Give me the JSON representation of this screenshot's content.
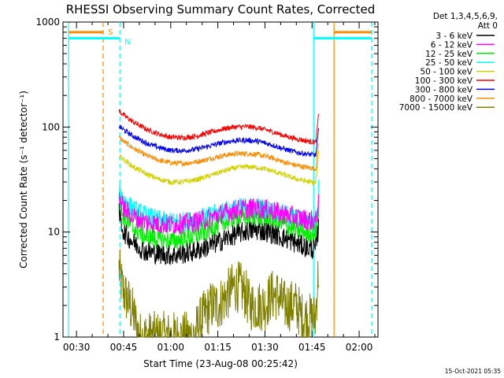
{
  "chart_data": {
    "type": "line",
    "title": "RHESSI Observing Summary Count Rates, Corrected",
    "xlabel": "Start Time (23-Aug-08 00:25:42)",
    "ylabel": "Corrected Count Rate (s⁻¹ detector⁻¹)",
    "y_scale": "log",
    "ylim": [
      1,
      1000
    ],
    "xlim_minutes": [
      25.7,
      126
    ],
    "x_ticks": [
      {
        "minutes": 30,
        "label": "00:30"
      },
      {
        "minutes": 45,
        "label": "00:45"
      },
      {
        "minutes": 60,
        "label": "01:00"
      },
      {
        "minutes": 75,
        "label": "01:15"
      },
      {
        "minutes": 90,
        "label": "01:30"
      },
      {
        "minutes": 105,
        "label": "01:45"
      },
      {
        "minutes": 120,
        "label": "02:00"
      }
    ],
    "y_ticks": [
      {
        "value": 1,
        "label": "1"
      },
      {
        "value": 10,
        "label": "10"
      },
      {
        "value": 100,
        "label": "100"
      },
      {
        "value": 1000,
        "label": "1000"
      }
    ],
    "legend_header": [
      "Det 1,3,4,5,6,9,",
      "Att 0"
    ],
    "legend_position": "right",
    "series": [
      {
        "name": "3 - 6 keV",
        "color": "#000000",
        "x": [
          43.5,
          45,
          48,
          52,
          56,
          60,
          64,
          68,
          72,
          76,
          80,
          84,
          88,
          92,
          96,
          100,
          104,
          106.2,
          107.2
        ],
        "y": [
          15,
          10,
          8,
          6.5,
          6.2,
          6.0,
          6.2,
          6.6,
          7.3,
          8.2,
          9.3,
          10.2,
          10.4,
          9.8,
          8.8,
          7.8,
          7.0,
          6.8,
          12
        ]
      },
      {
        "name": "6 - 12 keV",
        "color": "#ff00ff",
        "x": [
          43.5,
          45,
          48,
          52,
          56,
          60,
          64,
          68,
          72,
          76,
          80,
          84,
          88,
          92,
          96,
          100,
          104,
          106.2,
          107.2
        ],
        "y": [
          22,
          17,
          14,
          12.5,
          12,
          11.8,
          12,
          12.5,
          13.5,
          14.8,
          16,
          16.8,
          16.8,
          16,
          14.8,
          13.8,
          13,
          12.8,
          20
        ]
      },
      {
        "name": "12 - 25 keV",
        "color": "#00ee00",
        "x": [
          43.5,
          45,
          48,
          52,
          56,
          60,
          64,
          68,
          72,
          76,
          80,
          84,
          88,
          92,
          96,
          100,
          104,
          106.2,
          107.2
        ],
        "y": [
          18,
          14,
          11,
          9.2,
          8.5,
          8.2,
          8.5,
          9.3,
          10.5,
          12,
          13.3,
          14,
          13.8,
          12.8,
          11.6,
          10.5,
          9.8,
          9.5,
          16
        ]
      },
      {
        "name": "25 - 50 keV",
        "color": "#00ffff",
        "x": [
          43.5,
          45,
          48,
          52,
          56,
          60,
          64,
          68,
          72,
          76,
          80,
          84,
          88,
          92,
          96,
          100,
          104,
          106.2,
          107.2
        ],
        "y": [
          25,
          20,
          16.5,
          14.2,
          13,
          12.4,
          12.4,
          13,
          14,
          15.4,
          16.6,
          17.2,
          17,
          16,
          14.6,
          13.4,
          12.6,
          12.2,
          28
        ]
      },
      {
        "name": "50 - 100 keV",
        "color": "#d2d200",
        "x": [
          43.5,
          45,
          48,
          52,
          56,
          60,
          64,
          68,
          72,
          76,
          80,
          84,
          88,
          92,
          96,
          100,
          104,
          106.2,
          107.2
        ],
        "y": [
          54,
          49,
          42,
          36,
          32,
          30,
          30,
          31.5,
          34,
          37.5,
          40.5,
          42,
          41,
          38.5,
          35,
          32,
          30,
          29.5,
          60
        ]
      },
      {
        "name": "100 - 300 keV",
        "color": "#ff0000",
        "x": [
          43.5,
          45,
          48,
          52,
          56,
          60,
          64,
          68,
          72,
          76,
          80,
          84,
          88,
          92,
          96,
          100,
          104,
          106.2,
          107.2
        ],
        "y": [
          142,
          130,
          112,
          96,
          86,
          80,
          79,
          82,
          88,
          95,
          100,
          101,
          98,
          91,
          83,
          77,
          73,
          72,
          140
        ]
      },
      {
        "name": "300 - 800 keV",
        "color": "#0000ff",
        "x": [
          43.5,
          45,
          48,
          52,
          56,
          60,
          64,
          68,
          72,
          76,
          80,
          84,
          88,
          92,
          96,
          100,
          104,
          106.2,
          107.2
        ],
        "y": [
          102,
          94,
          82,
          71,
          64,
          60,
          59.5,
          61.5,
          65.5,
          70.5,
          74,
          75,
          73,
          68,
          62,
          57.5,
          55,
          54,
          100
        ]
      },
      {
        "name": "800 - 7000 keV",
        "color": "#ff8c00",
        "x": [
          43.5,
          45,
          48,
          52,
          56,
          60,
          64,
          68,
          72,
          76,
          80,
          84,
          88,
          92,
          96,
          100,
          104,
          106.2,
          107.2
        ],
        "y": [
          80,
          73,
          63,
          54,
          48.5,
          45.5,
          45,
          46.5,
          49.5,
          53,
          55.5,
          56,
          54.5,
          51,
          46.5,
          43,
          41,
          40,
          78
        ]
      },
      {
        "name": "7000 - 15000 keV",
        "color": "#808000",
        "x": [
          43.5,
          44.5,
          45.5,
          47,
          48.5,
          50,
          53,
          57,
          62,
          67,
          70,
          73,
          75,
          78,
          80,
          82,
          84,
          85,
          86,
          88,
          90,
          92,
          94,
          96,
          98,
          100,
          102,
          104,
          106,
          107.2
        ],
        "y": [
          4.5,
          3,
          2.5,
          2,
          1.5,
          1,
          1,
          1,
          1,
          1,
          1.5,
          2,
          2,
          2.5,
          3,
          3,
          2.5,
          2,
          2,
          2,
          2,
          2.5,
          2.5,
          2,
          2,
          2,
          1.5,
          1.5,
          1.5,
          5
        ]
      }
    ],
    "annotations": [
      {
        "label": "S",
        "color": "#ff8c00",
        "line_style": "dashed",
        "x_minutes": 38.5
      },
      {
        "label": "N",
        "color": "#00ffff",
        "line_style": "dashed",
        "x_minutes": 43.8
      },
      {
        "label": "",
        "color": "#00ffff",
        "line_style": "solid",
        "x_minutes": 27.5
      },
      {
        "label": "",
        "color": "#00ffff",
        "line_style": "solid",
        "x_minutes": 105.5
      },
      {
        "label": "",
        "color": "#ff8c00",
        "line_style": "solid",
        "x_minutes": 112
      },
      {
        "label": "",
        "color": "#00ffff",
        "line_style": "dashed",
        "x_minutes": 124
      }
    ],
    "footer_date": "15-Oct-2021 05:35"
  }
}
